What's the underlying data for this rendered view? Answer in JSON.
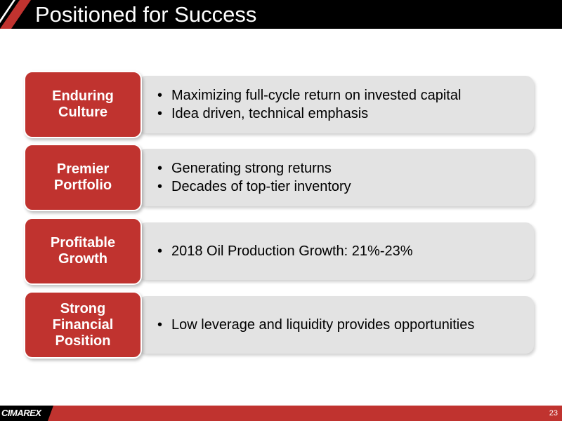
{
  "header": {
    "title": "Positioned for Success"
  },
  "rows": [
    {
      "label": "Enduring\nCulture",
      "bullets": [
        "Maximizing full-cycle return on invested capital",
        "Idea driven, technical emphasis"
      ]
    },
    {
      "label": "Premier\nPortfolio",
      "bullets": [
        "Generating strong returns",
        "Decades of top-tier inventory"
      ]
    },
    {
      "label": "Profitable\nGrowth",
      "bullets": [
        "2018 Oil Production Growth: 21%-23%"
      ]
    },
    {
      "label": "Strong\nFinancial\nPosition",
      "bullets": [
        "Low leverage and liquidity provides opportunities"
      ]
    }
  ],
  "footer": {
    "logo": "CIMAREX",
    "page_number": "23"
  },
  "bullet_glyph": "•",
  "colors": {
    "header_bg": "#000000",
    "accent_red": "#c0332f",
    "panel_gray": "#e3e3e3"
  }
}
